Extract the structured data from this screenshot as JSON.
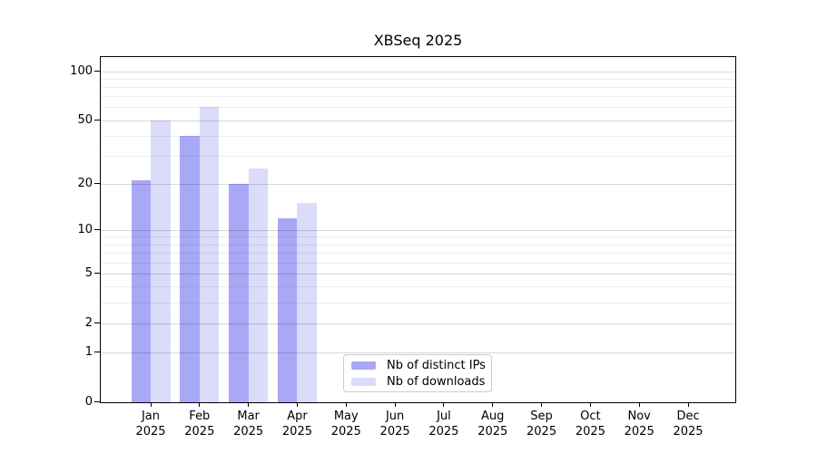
{
  "chart_data": {
    "type": "bar",
    "title": "XBSeq 2025",
    "categories": [
      "Jan 2025",
      "Feb 2025",
      "Mar 2025",
      "Apr 2025",
      "May 2025",
      "Jun 2025",
      "Jul 2025",
      "Aug 2025",
      "Sep 2025",
      "Oct 2025",
      "Nov 2025",
      "Dec 2025"
    ],
    "x_tick_months": [
      "Jan",
      "Feb",
      "Mar",
      "Apr",
      "May",
      "Jun",
      "Jul",
      "Aug",
      "Sep",
      "Oct",
      "Nov",
      "Dec"
    ],
    "x_tick_year": "2025",
    "series": [
      {
        "name": "Nb of distinct IPs",
        "color": "#a8a8f6",
        "values": [
          21,
          40,
          20,
          12,
          null,
          null,
          null,
          null,
          null,
          null,
          null,
          null
        ]
      },
      {
        "name": "Nb of downloads",
        "color": "#dbdbfa",
        "values": [
          50,
          60,
          25,
          15,
          null,
          null,
          null,
          null,
          null,
          null,
          null,
          null
        ]
      }
    ],
    "y_axis": {
      "scale": "log10(value+1)",
      "range": [
        0,
        123
      ],
      "ticks": [
        100,
        50,
        20,
        10,
        5,
        2,
        1,
        0
      ],
      "tick_labels": [
        "100",
        "50",
        "20",
        "10",
        "5",
        "2",
        "1",
        "0"
      ],
      "minor_ticks": [
        90,
        80,
        70,
        60,
        40,
        30,
        9,
        8,
        7,
        6,
        4,
        3
      ]
    },
    "grid": {
      "major": true,
      "minor": true,
      "grid_on_top_of_bars": true
    },
    "legend_position": "lower center, inside plot"
  }
}
